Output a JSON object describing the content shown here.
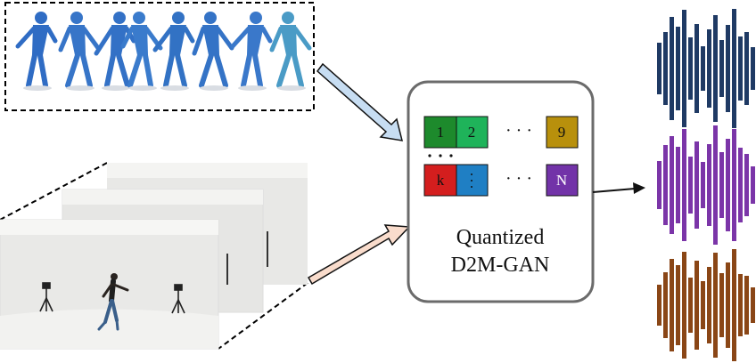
{
  "model": {
    "line1": "Quantized",
    "line2": "D2M-GAN"
  },
  "codebook": {
    "row1": [
      "1",
      "2"
    ],
    "row1_last": "9",
    "row2_first": "k",
    "row2_last": "N",
    "ellipsis": "· · ·",
    "colors": {
      "c1": "#1d8a2c",
      "c2": "#1fb35a",
      "c9": "#b8900c",
      "ck": "#d41e1e",
      "ck2": "#1f7fc4",
      "cN": "#7233a8"
    }
  },
  "waveforms": {
    "colors": [
      "#1f3a64",
      "#7b35a8",
      "#8a4616"
    ]
  },
  "arrows": {
    "top_color": "#c7ddf2",
    "bottom_color": "#f9dccc"
  }
}
